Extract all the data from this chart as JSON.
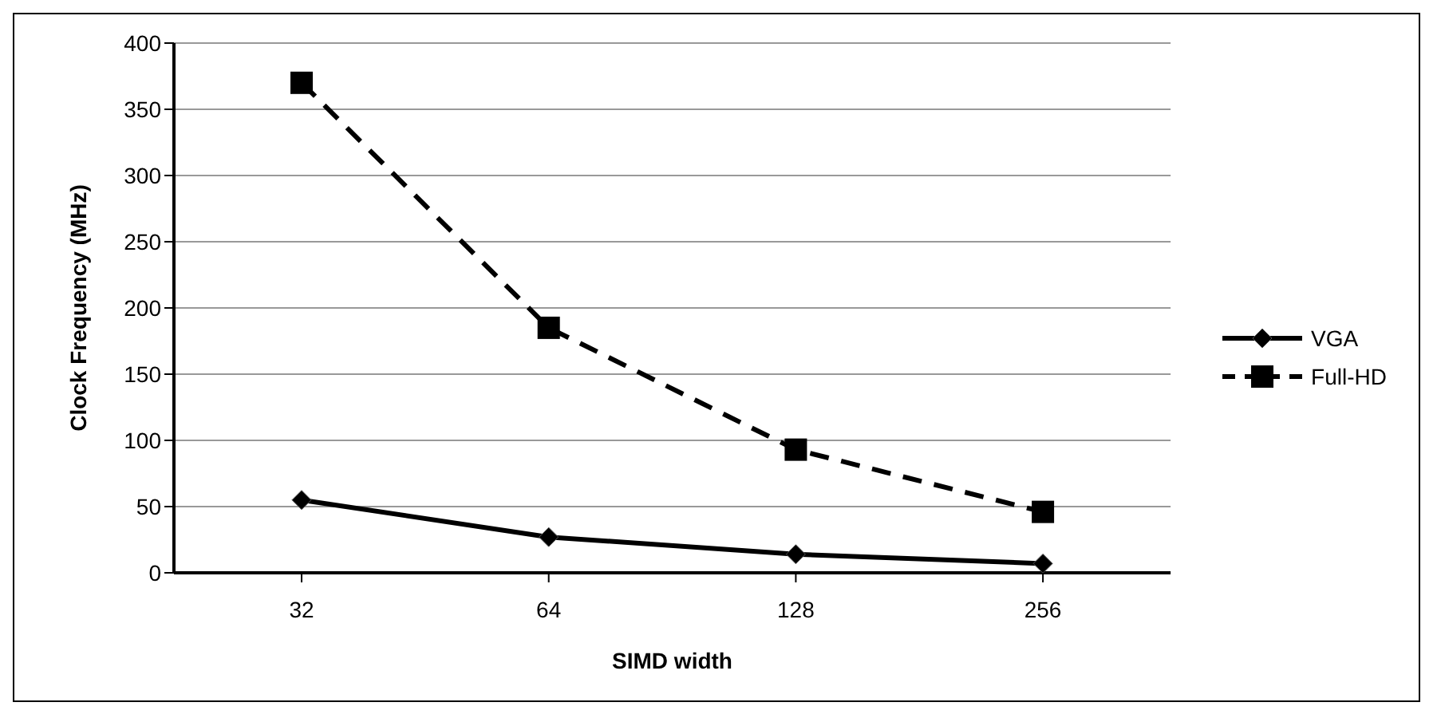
{
  "chart_data": {
    "type": "line",
    "xlabel": "SIMD width",
    "ylabel": "Clock Frequency (MHz)",
    "categories": [
      "32",
      "64",
      "128",
      "256"
    ],
    "series": [
      {
        "name": "VGA",
        "color": "#000000",
        "values": [
          55,
          27,
          14,
          7
        ],
        "marker": "diamond",
        "line_style": "solid"
      },
      {
        "name": "Full-HD",
        "color": "#000000",
        "values": [
          370,
          185,
          93,
          46
        ],
        "marker": "square",
        "line_style": "dashed"
      }
    ],
    "ylim": [
      0,
      400
    ],
    "yticks": [
      0,
      50,
      100,
      150,
      200,
      250,
      300,
      350,
      400
    ],
    "grid": "y",
    "legend": "right"
  }
}
